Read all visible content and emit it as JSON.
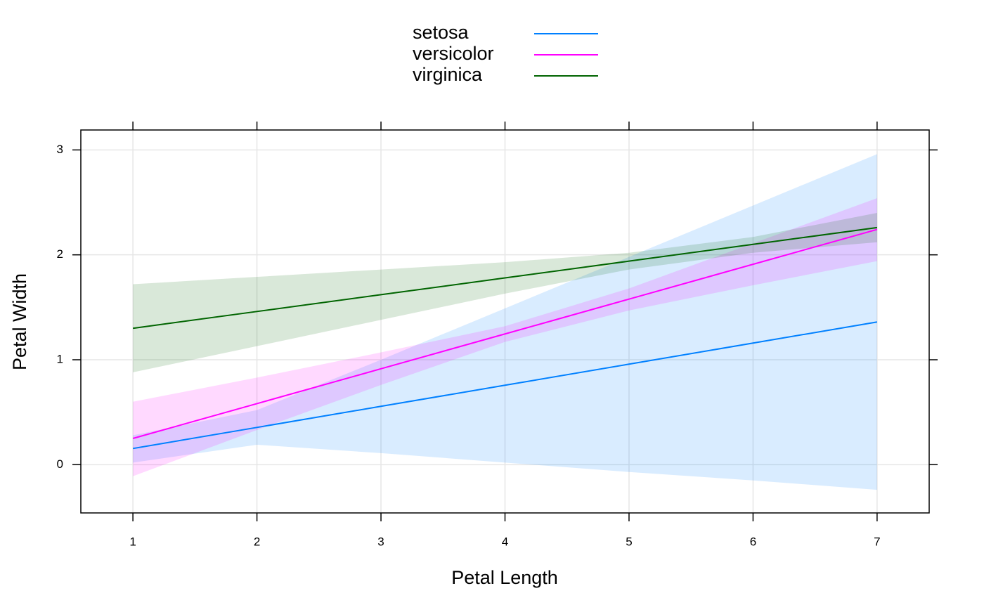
{
  "chart_data": {
    "type": "line",
    "x_label": "Petal Length",
    "y_label": "Petal Width",
    "x": [
      1,
      2,
      3,
      4,
      5,
      6,
      7
    ],
    "series": [
      {
        "name": "setosa",
        "color": "#0080ff",
        "values": [
          0.154,
          0.355,
          0.556,
          0.757,
          0.958,
          1.159,
          1.36
        ],
        "lower": [
          0.02,
          0.19,
          0.11,
          0.02,
          -0.07,
          -0.15,
          -0.24
        ],
        "upper": [
          0.28,
          0.52,
          1.0,
          1.49,
          1.98,
          2.47,
          2.96
        ]
      },
      {
        "name": "versicolor",
        "color": "#ff00ff",
        "values": [
          0.25,
          0.582,
          0.914,
          1.246,
          1.578,
          1.91,
          2.242
        ],
        "lower": [
          -0.11,
          0.33,
          0.76,
          1.17,
          1.47,
          1.71,
          1.94
        ],
        "upper": [
          0.6,
          0.83,
          1.07,
          1.32,
          1.68,
          2.11,
          2.54
        ]
      },
      {
        "name": "virginica",
        "color": "#006400",
        "values": [
          1.3,
          1.46,
          1.62,
          1.78,
          1.94,
          2.1,
          2.26
        ],
        "lower": [
          0.88,
          1.13,
          1.38,
          1.63,
          1.86,
          2.02,
          2.12
        ],
        "upper": [
          1.72,
          1.79,
          1.86,
          1.93,
          2.02,
          2.17,
          2.4
        ]
      }
    ],
    "xlim": [
      0.58,
      7.42
    ],
    "ylim": [
      -0.46,
      3.19
    ],
    "xticks": [
      1,
      2,
      3,
      4,
      5,
      6,
      7
    ],
    "yticks": [
      0,
      1,
      2,
      3
    ],
    "grid": true,
    "band_opacity": 0.15,
    "legend_position": "top"
  }
}
